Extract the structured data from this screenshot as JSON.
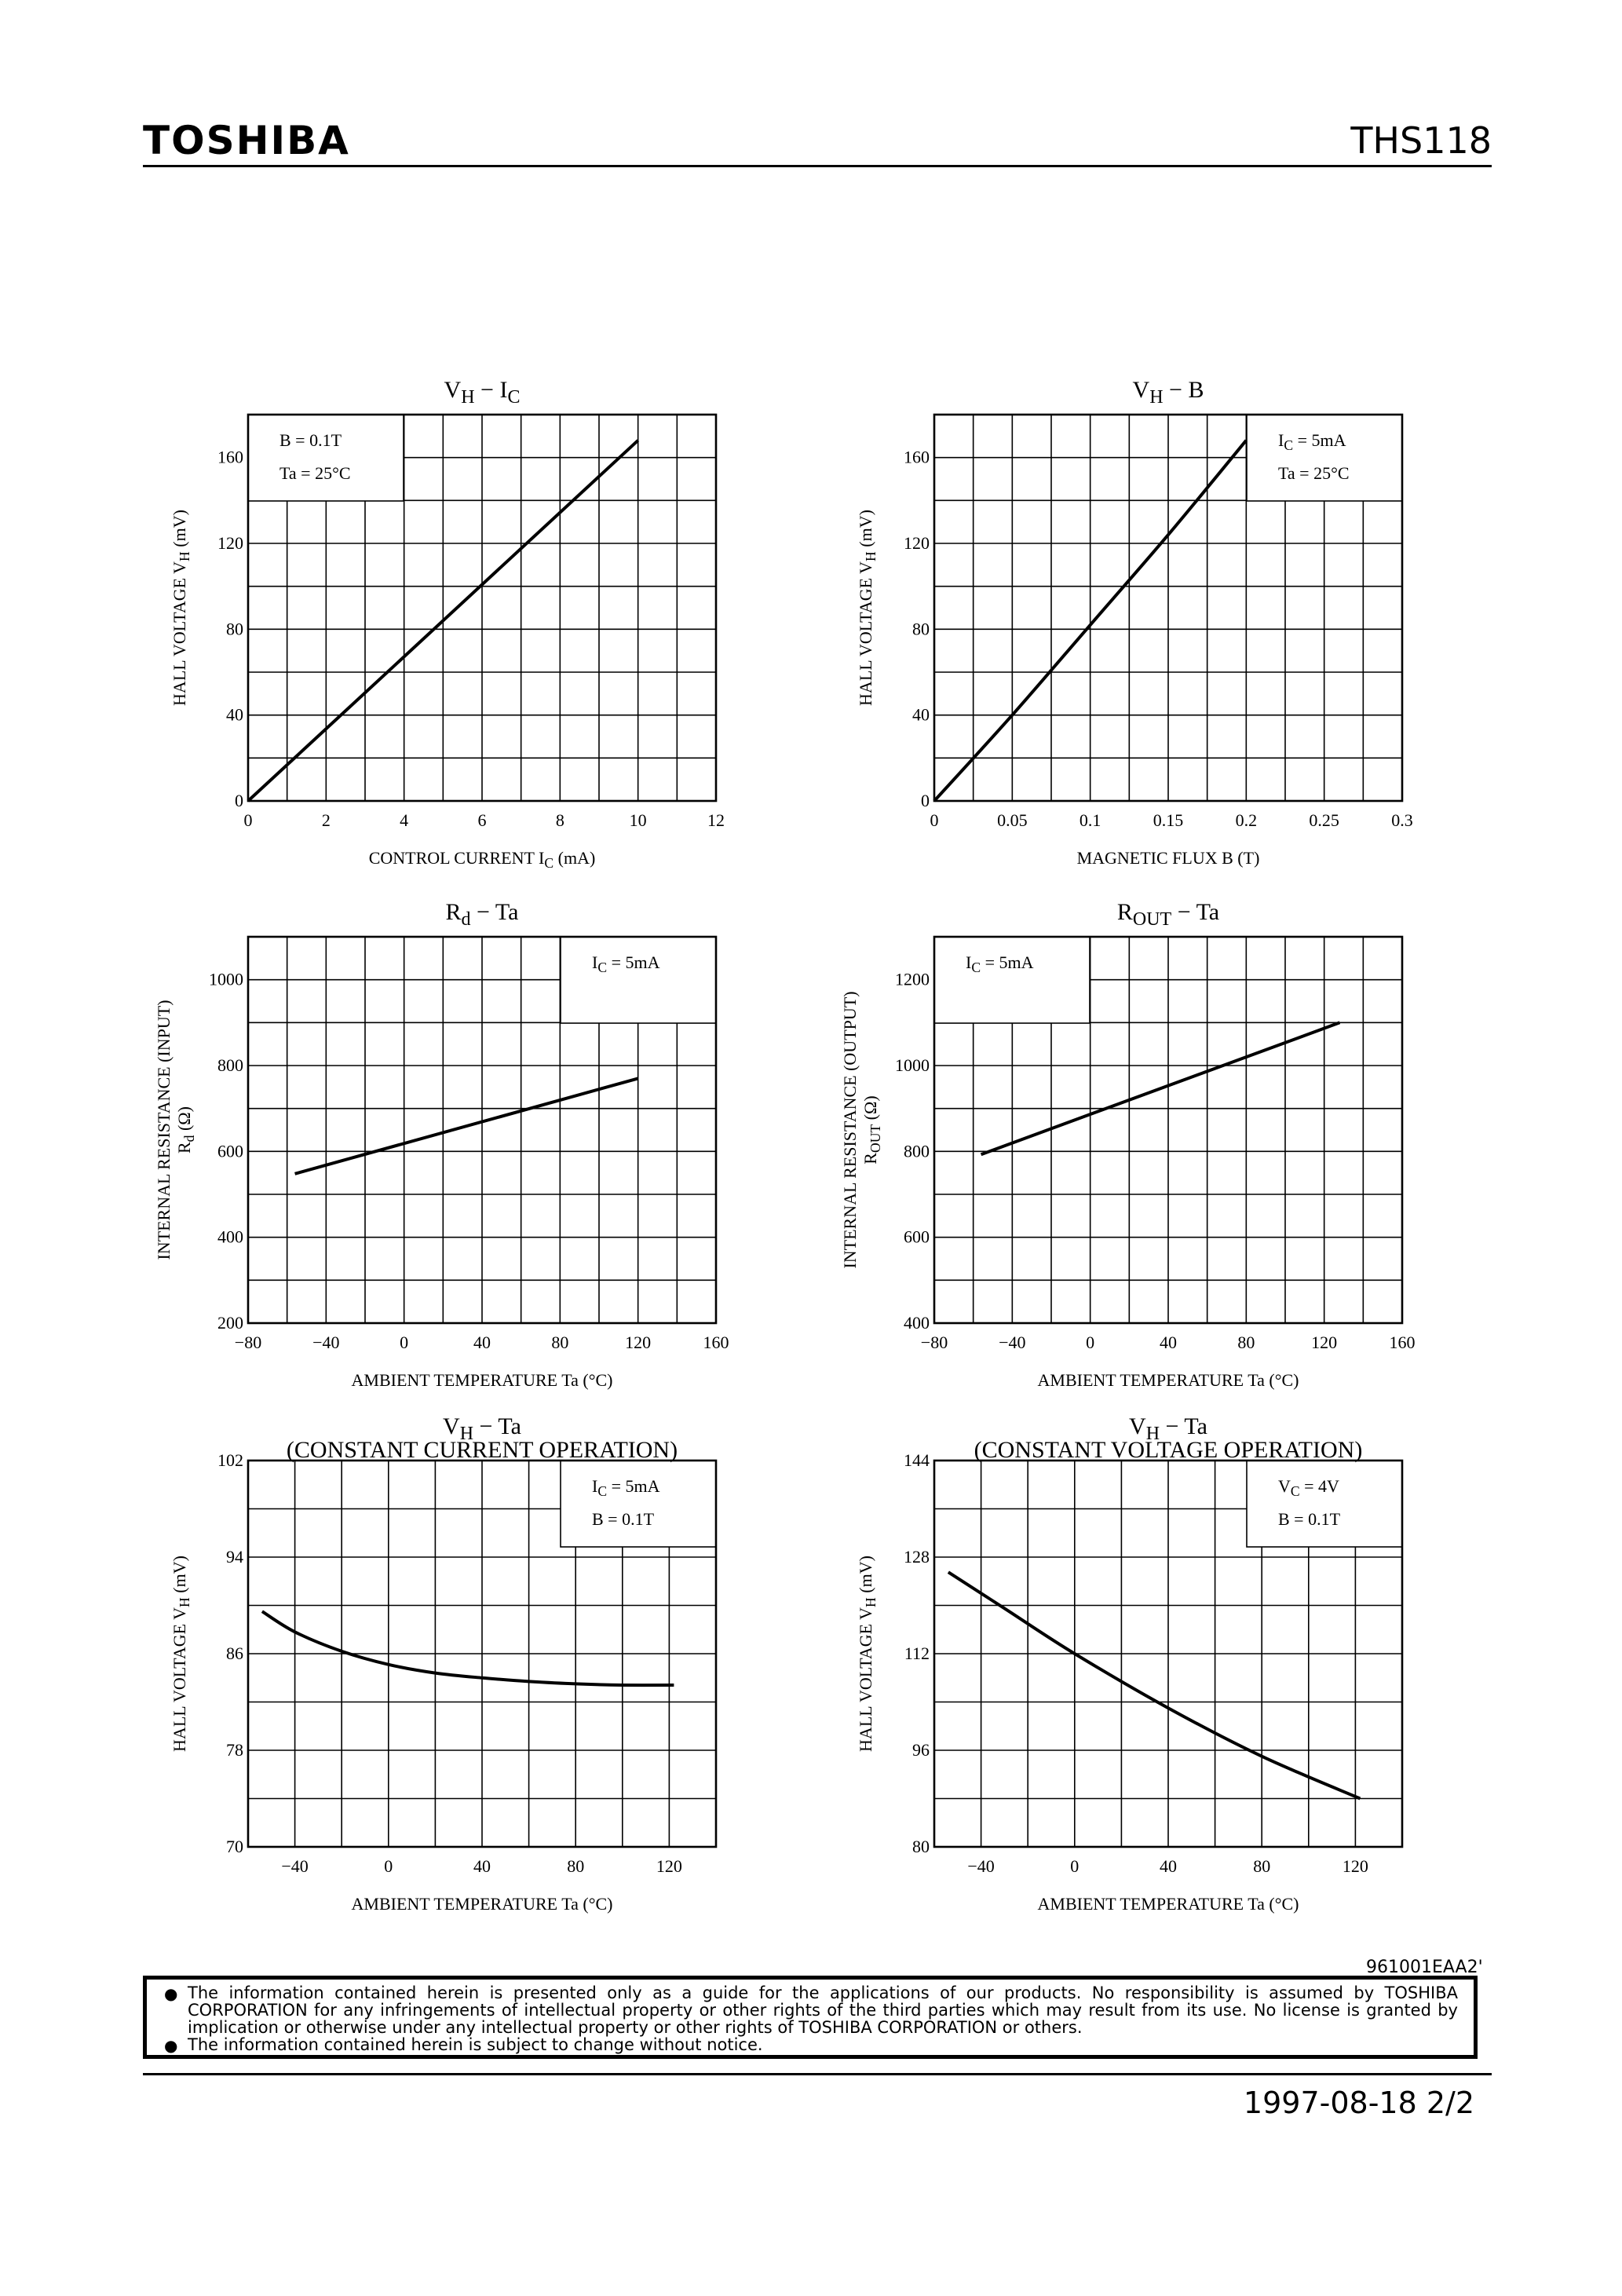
{
  "header": {
    "brand": "TOSHIBA",
    "part_number": "THS118"
  },
  "chart_data": [
    {
      "id": "vh_ic",
      "type": "line",
      "title_main": "V",
      "title_sub": "H",
      "title_rest": " − I",
      "title_sub2": "C",
      "title2": "",
      "xlabel": "CONTROL CURRENT  I",
      "xlabel_sub": "C",
      "xlabel_unit": "  (mA)",
      "ylabel": "HALL VOLTAGE   V",
      "ylabel_sub": "H",
      "ylabel_unit": "   (mV)",
      "ylabel_line2": "",
      "xlim": [
        0,
        12
      ],
      "ylim": [
        0,
        180
      ],
      "xticks": [
        0,
        2,
        4,
        6,
        8,
        10,
        12
      ],
      "xtick_labels": [
        "0",
        "2",
        "4",
        "6",
        "8",
        "10",
        "12"
      ],
      "yticks": [
        0,
        40,
        80,
        120,
        160
      ],
      "ytick_labels": [
        "0",
        "40",
        "80",
        "120",
        "160"
      ],
      "xgrid": 12,
      "ygrid": 9,
      "legend_lines": [
        {
          "t": "B = 0.1T"
        },
        {
          "t": "Ta = 25°C"
        }
      ],
      "legend_position": "top-left",
      "series": [
        {
          "x": [
            0,
            10
          ],
          "y": [
            0,
            168
          ]
        }
      ]
    },
    {
      "id": "vh_b",
      "type": "line",
      "title_main": "V",
      "title_sub": "H",
      "title_rest": " − B",
      "title_sub2": "",
      "title2": "",
      "xlabel": "MAGNETIC FLUX   B   (T)",
      "xlabel_sub": "",
      "xlabel_unit": "",
      "ylabel": "HALL VOLTAGE   V",
      "ylabel_sub": "H",
      "ylabel_unit": "   (mV)",
      "ylabel_line2": "",
      "xlim": [
        0,
        0.3
      ],
      "ylim": [
        0,
        180
      ],
      "xticks": [
        0,
        0.05,
        0.1,
        0.15,
        0.2,
        0.25,
        0.3
      ],
      "xtick_labels": [
        "0",
        "0.05",
        "0.1",
        "0.15",
        "0.2",
        "0.25",
        "0.3"
      ],
      "yticks": [
        0,
        40,
        80,
        120,
        160
      ],
      "ytick_labels": [
        "0",
        "40",
        "80",
        "120",
        "160"
      ],
      "xgrid": 12,
      "ygrid": 9,
      "legend_lines": [
        {
          "t": "I",
          "sub": "C",
          "rest": " = 5mA"
        },
        {
          "t": "Ta = 25°C"
        }
      ],
      "legend_position": "top-right",
      "series": [
        {
          "x": [
            0,
            0.05,
            0.1,
            0.15,
            0.2
          ],
          "y": [
            0,
            40,
            82,
            124,
            168
          ]
        }
      ]
    },
    {
      "id": "rd_ta",
      "type": "line",
      "title_main": "R",
      "title_sub": "d",
      "title_rest": " − Ta",
      "title_sub2": "",
      "title2": "",
      "xlabel": "AMBIENT TEMPERATURE   Ta   (°C)",
      "xlabel_sub": "",
      "xlabel_unit": "",
      "ylabel": "INTERNAL RESISTANCE (INPUT)",
      "ylabel_sub": "",
      "ylabel_unit": "",
      "ylabel_line2": "R",
      "ylabel_line2_sub": "d",
      "ylabel_line2_unit": "  (Ω)",
      "xlim": [
        -80,
        160
      ],
      "ylim": [
        200,
        1100
      ],
      "xticks": [
        -80,
        -40,
        0,
        40,
        80,
        120,
        160
      ],
      "xtick_labels": [
        "−80",
        "−40",
        "0",
        "40",
        "80",
        "120",
        "160"
      ],
      "yticks": [
        200,
        400,
        600,
        800,
        1000
      ],
      "ytick_labels": [
        "200",
        "400",
        "600",
        "800",
        "1000"
      ],
      "xgrid": 12,
      "ygrid": 9,
      "legend_lines": [
        {
          "t": "I",
          "sub": "C",
          "rest": " = 5mA"
        }
      ],
      "legend_position": "top-right",
      "series": [
        {
          "x": [
            -56,
            120
          ],
          "y": [
            548,
            770
          ]
        }
      ]
    },
    {
      "id": "rout_ta",
      "type": "line",
      "title_main": "R",
      "title_sub": "OUT",
      "title_rest": " − Ta",
      "title_sub2": "",
      "title2": "",
      "xlabel": "AMBIENT TEMPERATURE   Ta   (°C)",
      "xlabel_sub": "",
      "xlabel_unit": "",
      "ylabel": "INTERNAL RESISTANCE (OUTPUT)",
      "ylabel_sub": "",
      "ylabel_unit": "",
      "ylabel_line2": "R",
      "ylabel_line2_sub": "OUT",
      "ylabel_line2_unit": "  (Ω)",
      "xlim": [
        -80,
        160
      ],
      "ylim": [
        400,
        1300
      ],
      "xticks": [
        -80,
        -40,
        0,
        40,
        80,
        120,
        160
      ],
      "xtick_labels": [
        "−80",
        "−40",
        "0",
        "40",
        "80",
        "120",
        "160"
      ],
      "yticks": [
        400,
        600,
        800,
        1000,
        1200
      ],
      "ytick_labels": [
        "400",
        "600",
        "800",
        "1000",
        "1200"
      ],
      "xgrid": 12,
      "ygrid": 9,
      "legend_lines": [
        {
          "t": "I",
          "sub": "C",
          "rest": " = 5mA"
        }
      ],
      "legend_position": "top-left",
      "series": [
        {
          "x": [
            -56,
            128
          ],
          "y": [
            793,
            1100
          ]
        }
      ]
    },
    {
      "id": "vh_ta_cc",
      "type": "line",
      "title_main": "V",
      "title_sub": "H",
      "title_rest": " − Ta",
      "title_sub2": "",
      "title2": "(CONSTANT CURRENT OPERATION)",
      "xlabel": "AMBIENT TEMPERATURE   Ta   (°C)",
      "xlabel_sub": "",
      "xlabel_unit": "",
      "ylabel": "HALL VOLTAGE   V",
      "ylabel_sub": "H",
      "ylabel_unit": "   (mV)",
      "ylabel_line2": "",
      "xlim": [
        -60,
        140
      ],
      "ylim": [
        70,
        102
      ],
      "xticks": [
        -40,
        0,
        40,
        80,
        120
      ],
      "xtick_labels": [
        "−40",
        "0",
        "40",
        "80",
        "120"
      ],
      "yticks": [
        70,
        78,
        86,
        94,
        102
      ],
      "ytick_labels": [
        "70",
        "78",
        "86",
        "94",
        "102"
      ],
      "xgrid": 10,
      "ygrid": 8,
      "legend_lines": [
        {
          "t": "I",
          "sub": "C",
          "rest": " = 5mA"
        },
        {
          "t": "B = 0.1T"
        }
      ],
      "legend_position": "top-right",
      "series": [
        {
          "x": [
            -54,
            -40,
            -20,
            0,
            20,
            40,
            60,
            80,
            100,
            122
          ],
          "y": [
            89.5,
            87.8,
            86.2,
            85.1,
            84.4,
            84.0,
            83.7,
            83.5,
            83.4,
            83.4
          ]
        }
      ]
    },
    {
      "id": "vh_ta_cv",
      "type": "line",
      "title_main": "V",
      "title_sub": "H",
      "title_rest": " − Ta",
      "title_sub2": "",
      "title2": "(CONSTANT VOLTAGE OPERATION)",
      "xlabel": "AMBIENT TEMPERATURE   Ta   (°C)",
      "xlabel_sub": "",
      "xlabel_unit": "",
      "ylabel": "HALL VOLTAGE   V",
      "ylabel_sub": "H",
      "ylabel_unit": "   (mV)",
      "ylabel_line2": "",
      "xlim": [
        -60,
        140
      ],
      "ylim": [
        80,
        144
      ],
      "xticks": [
        -40,
        0,
        40,
        80,
        120
      ],
      "xtick_labels": [
        "−40",
        "0",
        "40",
        "80",
        "120"
      ],
      "yticks": [
        80,
        96,
        112,
        128,
        144
      ],
      "ytick_labels": [
        "80",
        "96",
        "112",
        "128",
        "144"
      ],
      "xgrid": 10,
      "ygrid": 8,
      "legend_lines": [
        {
          "t": "V",
          "sub": "C",
          "rest": " = 4V"
        },
        {
          "t": "B = 0.1T"
        }
      ],
      "legend_position": "top-right",
      "series": [
        {
          "x": [
            -54,
            -30,
            0,
            40,
            80,
            122
          ],
          "y": [
            125.5,
            119.5,
            112,
            103,
            95,
            88
          ]
        }
      ]
    }
  ],
  "footer": {
    "doc_code": "961001EAA2'",
    "notice_1": "The information contained herein is presented only as a guide for the applications of our products. No responsibility is assumed by TOSHIBA CORPORATION for any infringements of intellectual property or other rights of the third parties which may result from its use. No license is granted by implication or otherwise under any intellectual property or other rights of TOSHIBA CORPORATION or others.",
    "notice_2": "The information contained herein is subject to change without notice.",
    "bullet": "●",
    "date_page": "1997-08-18   2/2"
  }
}
